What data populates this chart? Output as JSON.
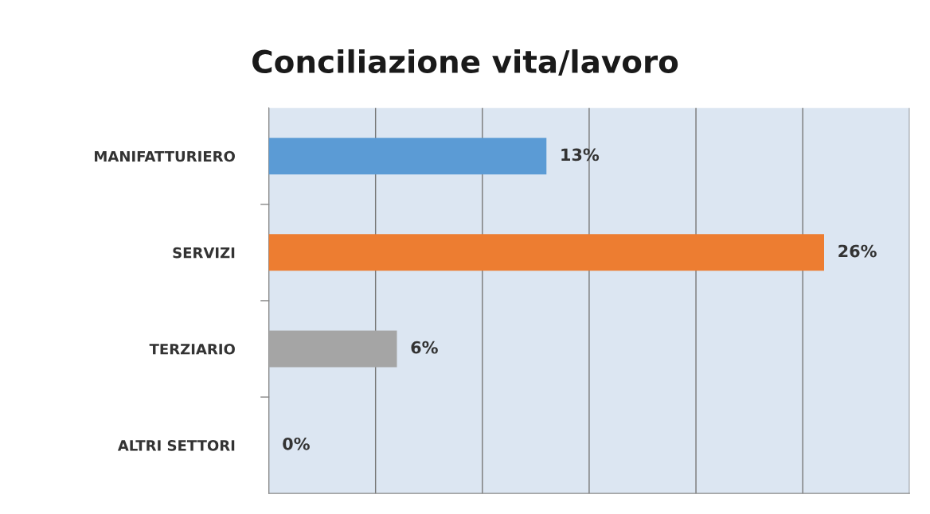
{
  "chart_data": {
    "type": "bar",
    "orientation": "horizontal",
    "title": "Conciliazione vita/lavoro",
    "categories": [
      "MANIFATTURIERO",
      "SERVIZI",
      "TERZIARIO",
      "ALTRI SETTORI"
    ],
    "values": [
      13,
      26,
      6,
      0
    ],
    "colors": [
      "#5b9bd5",
      "#ed7d31",
      "#a5a5a5",
      "#ffc000"
    ],
    "value_labels": [
      "13%",
      "26%",
      "6%",
      "0%"
    ],
    "xlim": [
      0,
      30
    ],
    "xticks": [
      {
        "value": 0,
        "label": null
      },
      {
        "value": 5,
        "label": null
      },
      {
        "value": 10,
        "label": null
      },
      {
        "value": 15,
        "label": null
      },
      {
        "value": 20,
        "label": null
      },
      {
        "value": 25,
        "label": null
      },
      {
        "value": 30,
        "label": null
      }
    ],
    "grid": "x",
    "tick_labels": "y",
    "legend": false
  }
}
